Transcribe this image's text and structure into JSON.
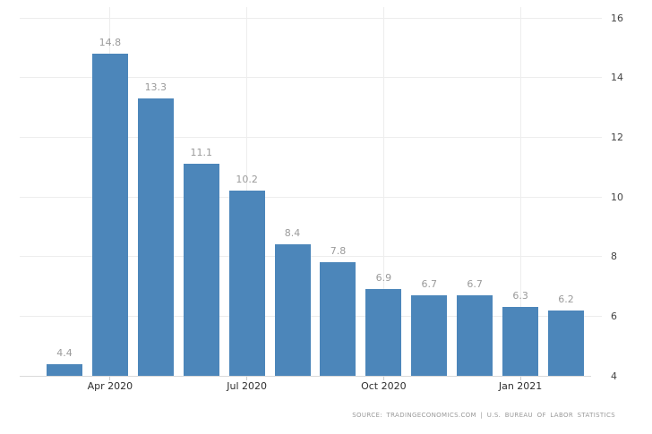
{
  "chart_data": {
    "type": "bar",
    "title": "",
    "values": [
      4.4,
      14.8,
      13.3,
      11.1,
      10.2,
      8.4,
      7.8,
      6.9,
      6.7,
      6.7,
      6.3,
      6.2
    ],
    "bar_value_labels": [
      "4.4",
      "14.8",
      "13.3",
      "11.1",
      "10.2",
      "8.4",
      "7.8",
      "6.9",
      "6.7",
      "6.7",
      "6.3",
      "6.2"
    ],
    "x_ticks": [
      {
        "bar_index": 1,
        "label": "Apr 2020"
      },
      {
        "bar_index": 4,
        "label": "Jul 2020"
      },
      {
        "bar_index": 7,
        "label": "Oct 2020"
      },
      {
        "bar_index": 10,
        "label": "Jan 2021"
      }
    ],
    "y_ticks": [
      4,
      6,
      8,
      10,
      12,
      14,
      16
    ],
    "y_axis_side": "right",
    "ylim": [
      4,
      16.5
    ],
    "grid": true,
    "legend": false
  },
  "footer": {
    "source_text": "SOURCE: TRADINGECONOMICS.COM | U.S. BUREAU OF LABOR STATISTICS"
  },
  "colors": {
    "bar": "#4c86ba",
    "grid_line": "#ededed",
    "axis_line": "#d9d9d9",
    "tick_mark": "#cccccc",
    "bar_value_label": "#9b9b9b",
    "y_tick_label": "#444444",
    "x_tick_label": "#2e2e2e",
    "source_text": "#9a9a9a",
    "background": "#ffffff"
  }
}
